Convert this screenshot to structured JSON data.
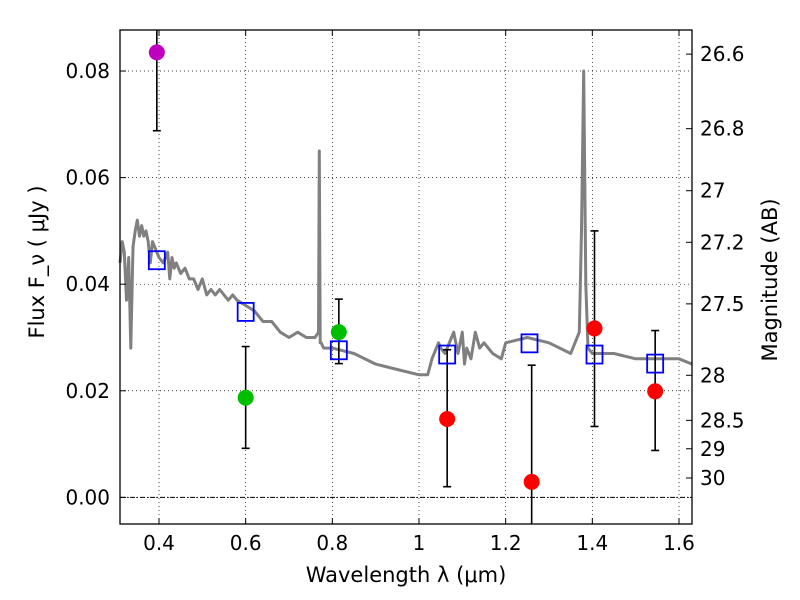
{
  "chart_data": {
    "type": "scatter",
    "title": "",
    "xlabel": "Wavelength  λ (μm)",
    "ylabel": "Flux  F_ν  ( μJy )",
    "ylabel_right": "Magnitude (AB)",
    "xlim": [
      0.31,
      1.63
    ],
    "ylim": [
      -0.005,
      0.0877
    ],
    "x_ticks": [
      {
        "value": 0.4,
        "label": "0.4"
      },
      {
        "value": 0.6,
        "label": "0.6"
      },
      {
        "value": 0.8,
        "label": "0.8"
      },
      {
        "value": 1.0,
        "label": "1"
      },
      {
        "value": 1.2,
        "label": "1.2"
      },
      {
        "value": 1.4,
        "label": "1.4"
      },
      {
        "value": 1.6,
        "label": "1.6"
      }
    ],
    "y_ticks": [
      {
        "value": 0.0,
        "label": "0.00"
      },
      {
        "value": 0.02,
        "label": "0.02"
      },
      {
        "value": 0.04,
        "label": "0.04"
      },
      {
        "value": 0.06,
        "label": "0.06"
      },
      {
        "value": 0.08,
        "label": "0.08"
      }
    ],
    "right_ticks": [
      {
        "label": "26.6"
      },
      {
        "label": "26.8"
      },
      {
        "label": "27"
      },
      {
        "label": "27.2"
      },
      {
        "label": "27.5"
      },
      {
        "label": "28"
      },
      {
        "label": "28.5"
      },
      {
        "label": "29"
      },
      {
        "label": "30"
      }
    ],
    "grid": true,
    "zero_line": 0.0,
    "model_spectrum": {
      "name": "template SED",
      "color": "#808080",
      "x": [
        0.31,
        0.315,
        0.32,
        0.325,
        0.33,
        0.335,
        0.34,
        0.345,
        0.35,
        0.355,
        0.36,
        0.365,
        0.37,
        0.375,
        0.38,
        0.385,
        0.39,
        0.4,
        0.41,
        0.42,
        0.425,
        0.43,
        0.435,
        0.44,
        0.45,
        0.46,
        0.47,
        0.48,
        0.49,
        0.5,
        0.51,
        0.52,
        0.53,
        0.54,
        0.55,
        0.56,
        0.57,
        0.58,
        0.6,
        0.62,
        0.64,
        0.66,
        0.68,
        0.7,
        0.72,
        0.74,
        0.76,
        0.768,
        0.77,
        0.772,
        0.774,
        0.78,
        0.8,
        0.85,
        0.9,
        0.95,
        1.0,
        1.02,
        1.03,
        1.045,
        1.05,
        1.06,
        1.08,
        1.09,
        1.1,
        1.105,
        1.11,
        1.12,
        1.13,
        1.14,
        1.15,
        1.17,
        1.19,
        1.2,
        1.25,
        1.3,
        1.35,
        1.36,
        1.37,
        1.375,
        1.38,
        1.385,
        1.39,
        1.4,
        1.42,
        1.45,
        1.5,
        1.55,
        1.6,
        1.63
      ],
      "y": [
        0.044,
        0.048,
        0.046,
        0.037,
        0.045,
        0.028,
        0.047,
        0.05,
        0.052,
        0.049,
        0.051,
        0.049,
        0.05,
        0.048,
        0.044,
        0.048,
        0.047,
        0.045,
        0.044,
        0.046,
        0.041,
        0.045,
        0.043,
        0.044,
        0.042,
        0.043,
        0.041,
        0.041,
        0.039,
        0.041,
        0.038,
        0.039,
        0.038,
        0.039,
        0.038,
        0.037,
        0.038,
        0.037,
        0.036,
        0.035,
        0.033,
        0.033,
        0.031,
        0.03,
        0.031,
        0.03,
        0.03,
        0.031,
        0.065,
        0.029,
        0.029,
        0.028,
        0.028,
        0.027,
        0.025,
        0.024,
        0.023,
        0.023,
        0.026,
        0.029,
        0.028,
        0.027,
        0.031,
        0.027,
        0.031,
        0.025,
        0.028,
        0.026,
        0.031,
        0.028,
        0.029,
        0.027,
        0.026,
        0.029,
        0.03,
        0.029,
        0.027,
        0.029,
        0.031,
        0.05,
        0.08,
        0.04,
        0.028,
        0.027,
        0.027,
        0.027,
        0.026,
        0.026,
        0.026,
        0.025
      ]
    },
    "series": [
      {
        "name": "violet point",
        "marker": "circle",
        "color": "#bf00bf",
        "x": [
          0.395
        ],
        "y": [
          0.0835
        ],
        "yerr_low": [
          0.0688
        ],
        "yerr_high": [
          0.0877
        ]
      },
      {
        "name": "green points",
        "marker": "circle",
        "color": "#00bf00",
        "x": [
          0.6,
          0.815
        ],
        "y": [
          0.0187,
          0.031
        ],
        "yerr_low": [
          0.0092,
          0.0251
        ],
        "yerr_high": [
          0.0283,
          0.0372
        ]
      },
      {
        "name": "red points",
        "marker": "circle",
        "color": "#ff0000",
        "x": [
          1.065,
          1.26,
          1.405,
          1.545
        ],
        "y": [
          0.0147,
          0.0029,
          0.0317,
          0.0199
        ],
        "yerr_low": [
          0.002,
          -0.005,
          0.0133,
          0.0088
        ],
        "yerr_high": [
          0.0277,
          0.0248,
          0.05,
          0.0313
        ]
      },
      {
        "name": "model band fluxes",
        "marker": "square",
        "color": "#0000ff",
        "x": [
          0.395,
          0.6,
          0.815,
          1.065,
          1.255,
          1.405,
          1.545
        ],
        "y": [
          0.0445,
          0.0348,
          0.0276,
          0.0268,
          0.0289,
          0.0268,
          0.0251
        ]
      }
    ]
  }
}
